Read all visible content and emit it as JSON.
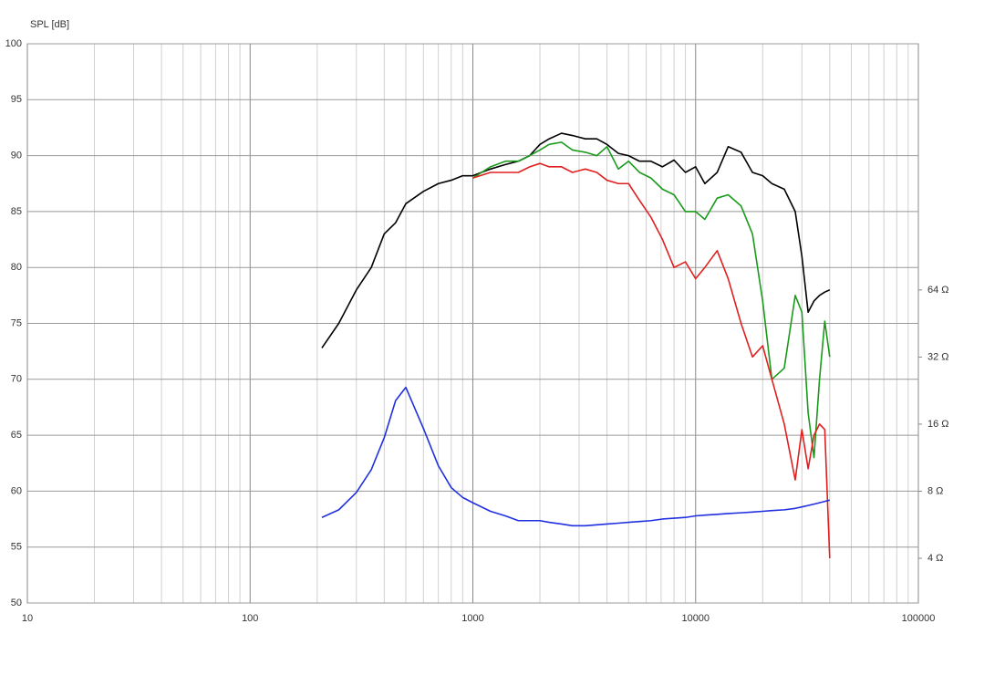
{
  "chart_data": {
    "type": "line",
    "y_label": "SPL [dB]",
    "xscale": "log",
    "y2scale": "log",
    "grid": true,
    "minor_grid": true,
    "xlim": [
      10,
      100000
    ],
    "xticks": [
      10,
      100,
      1000,
      10000,
      100000
    ],
    "ylim": [
      50,
      100
    ],
    "yticks": [
      50,
      55,
      60,
      65,
      70,
      75,
      80,
      85,
      90,
      95,
      100
    ],
    "y2lim": [
      2.52,
      815
    ],
    "y2ticks": [
      {
        "value": 4,
        "label": "4 Ω"
      },
      {
        "value": 8,
        "label": "8 Ω"
      },
      {
        "value": 16,
        "label": "16 Ω"
      },
      {
        "value": 32,
        "label": "32 Ω"
      },
      {
        "value": 64,
        "label": "64 Ω"
      }
    ],
    "x": [
      210,
      250,
      300,
      350,
      400,
      450,
      500,
      600,
      700,
      800,
      900,
      1000,
      1200,
      1400,
      1600,
      1800,
      2000,
      2200,
      2500,
      2800,
      3200,
      3600,
      4000,
      4500,
      5000,
      5600,
      6300,
      7100,
      8000,
      9000,
      10000,
      11000,
      12500,
      14000,
      16000,
      18000,
      20000,
      22000,
      25000,
      28000,
      30000,
      32000,
      34000,
      36000,
      38000,
      40000
    ],
    "series": [
      {
        "color": "#000000",
        "values": [
          72.8,
          75,
          78,
          80,
          83,
          84,
          85.7,
          86.8,
          87.5,
          87.8,
          88.2,
          88.2,
          88.8,
          89.2,
          89.5,
          90,
          91,
          91.5,
          92,
          91.8,
          91.5,
          91.5,
          91,
          90.2,
          90,
          89.5,
          89.5,
          89,
          89.6,
          88.5,
          89,
          87.5,
          88.5,
          90.8,
          90.3,
          88.5,
          88.2,
          87.5,
          87,
          85,
          81,
          76,
          77,
          77.5,
          77.8,
          78
        ]
      },
      {
        "color": "#1a9a1a",
        "values": [
          null,
          null,
          null,
          null,
          null,
          null,
          null,
          null,
          null,
          null,
          null,
          88,
          89,
          89.5,
          89.5,
          90,
          90.5,
          91,
          91.2,
          90.5,
          90.3,
          90,
          90.8,
          88.8,
          89.5,
          88.5,
          88,
          87,
          86.5,
          85,
          85,
          84.3,
          86.2,
          86.5,
          85.5,
          83,
          77,
          70,
          71,
          77.5,
          76,
          67,
          63,
          70,
          75.2,
          72
        ]
      },
      {
        "color": "#e02020",
        "values": [
          null,
          null,
          null,
          null,
          null,
          null,
          null,
          null,
          null,
          null,
          null,
          88,
          88.5,
          88.5,
          88.5,
          89,
          89.3,
          89,
          89,
          88.5,
          88.8,
          88.5,
          87.8,
          87.5,
          87.5,
          86,
          84.5,
          82.5,
          80,
          80.5,
          79,
          80,
          81.5,
          79,
          75,
          72,
          73,
          70,
          66,
          61,
          65.5,
          62,
          65,
          66,
          65.5,
          54
        ]
      },
      {
        "color": "#2030e0",
        "axis": "y2",
        "values": [
          6.1,
          6.6,
          7.9,
          10.0,
          13.9,
          20.4,
          23.4,
          15.3,
          10.4,
          8.3,
          7.5,
          7.1,
          6.5,
          6.2,
          5.9,
          5.9,
          5.9,
          5.8,
          5.7,
          5.6,
          5.6,
          5.65,
          5.7,
          5.75,
          5.8,
          5.85,
          5.9,
          6.0,
          6.05,
          6.1,
          6.2,
          6.25,
          6.3,
          6.35,
          6.4,
          6.45,
          6.5,
          6.55,
          6.6,
          6.7,
          6.8,
          6.9,
          7.0,
          7.1,
          7.2,
          7.3
        ]
      }
    ]
  }
}
